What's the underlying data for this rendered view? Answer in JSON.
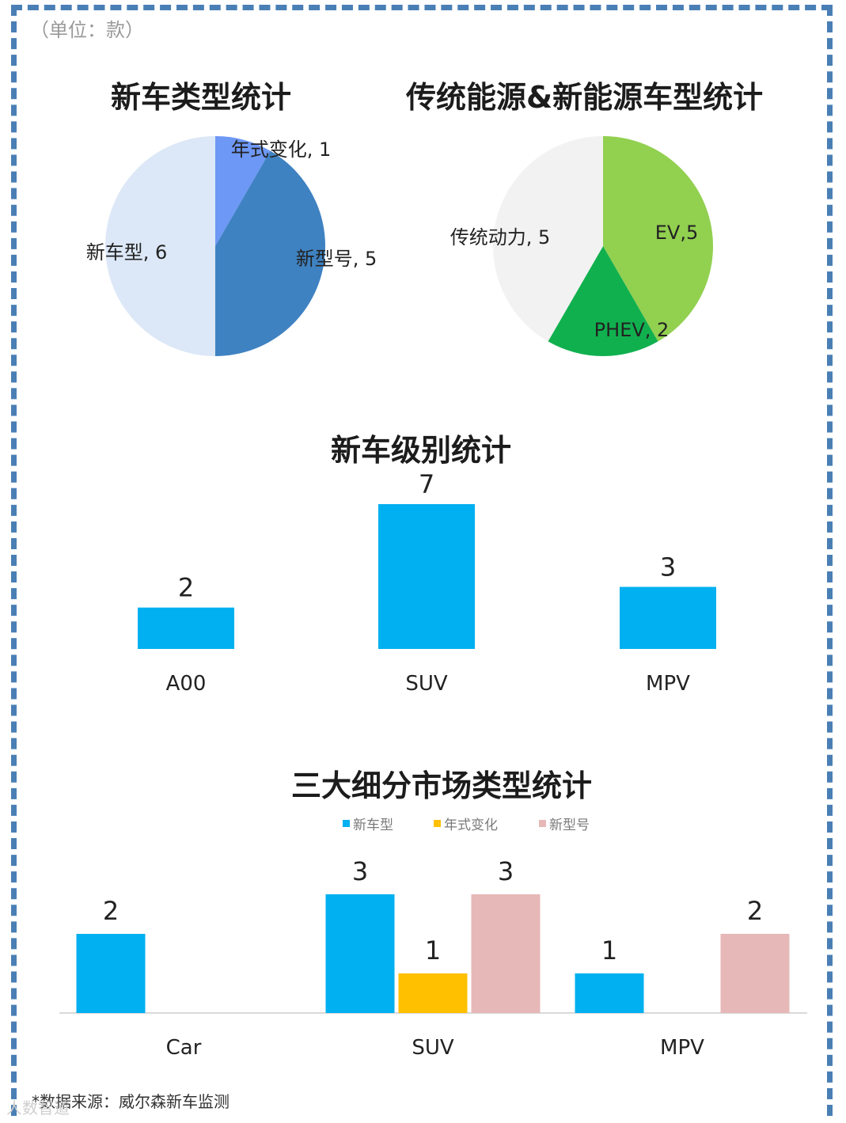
{
  "unit_label": "（单位：款）",
  "footer": {
    "source": "*数据来源：威尔森新车监测",
    "watermark": "人数智道"
  },
  "chart_data": [
    {
      "type": "pie",
      "title": "新车类型统计",
      "slices": [
        {
          "label": "年式变化",
          "value": 1,
          "display": "年式变化, 1",
          "color": "#6e98f5"
        },
        {
          "label": "新型号",
          "value": 5,
          "display": "新型号, 5",
          "color": "#3f82c2"
        },
        {
          "label": "新车型",
          "value": 6,
          "display": "新车型, 6",
          "color": "#dce8f7"
        }
      ]
    },
    {
      "type": "pie",
      "title": "传统能源&新能源车型统计",
      "slices": [
        {
          "label": "EV",
          "value": 5,
          "display": "EV,5",
          "color": "#92d050"
        },
        {
          "label": "PHEV",
          "value": 2,
          "display": "PHEV, 2",
          "color": "#11b04f"
        },
        {
          "label": "传统动力",
          "value": 5,
          "display": "传统动力, 5",
          "color": "#f2f2f2"
        }
      ]
    },
    {
      "type": "bar",
      "title": "新车级别统计",
      "categories": [
        "A00",
        "SUV",
        "MPV"
      ],
      "values": [
        2,
        7,
        3
      ],
      "color": "#00b0f0",
      "ylim": [
        0,
        7
      ]
    },
    {
      "type": "bar",
      "title": "三大细分市场类型统计",
      "categories": [
        "Car",
        "SUV",
        "MPV"
      ],
      "series": [
        {
          "name": "新车型",
          "values": [
            2,
            3,
            1
          ],
          "color": "#00b0f0"
        },
        {
          "name": "年式变化",
          "values": [
            0,
            1,
            0
          ],
          "color": "#ffc000"
        },
        {
          "name": "新型号",
          "values": [
            0,
            3,
            2
          ],
          "color": "#e6b8b7"
        }
      ],
      "legend": "top-center",
      "ylim": [
        0,
        3
      ]
    }
  ]
}
